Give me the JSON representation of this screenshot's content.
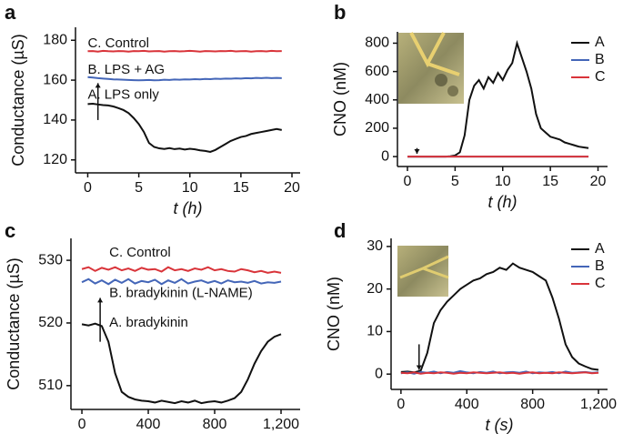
{
  "chart_data": [
    {
      "type": "line",
      "panel_label": "a",
      "x_label": "t (h)",
      "y_label": "Conductance (µS)",
      "xlim": [
        -1.2,
        20.8
      ],
      "ylim": [
        113.5,
        186.5
      ],
      "xticks": [
        0,
        5,
        10,
        15,
        20
      ],
      "yticks": [
        120,
        140,
        160,
        180
      ],
      "x": [
        0,
        0.5,
        1,
        1.5,
        2,
        2.5,
        3,
        3.5,
        4,
        4.5,
        5,
        5.5,
        6,
        6.5,
        7,
        7.5,
        8,
        8.5,
        9,
        9.5,
        10,
        10.5,
        11,
        11.5,
        12,
        12.5,
        13,
        13.5,
        14,
        14.5,
        15,
        15.5,
        16,
        16.5,
        17,
        17.5,
        18,
        18.5,
        19
      ],
      "series": [
        {
          "name": "C. Control",
          "color": "#d9343a",
          "values": [
            174.5,
            174.6,
            174.3,
            174.7,
            174.5,
            174.4,
            174.6,
            174.5,
            174.3,
            174.6,
            174.5,
            174.7,
            174.4,
            174.5,
            174.6,
            174.3,
            174.5,
            174.6,
            174.4,
            174.5,
            174.7,
            174.5,
            174.3,
            174.6,
            174.5,
            174.4,
            174.6,
            174.5,
            174.7,
            174.4,
            174.5,
            174.6,
            174.3,
            174.5,
            174.6,
            174.4,
            174.7,
            174.5,
            174.6
          ]
        },
        {
          "name": "B. LPS + AG",
          "color": "#4466b8",
          "values": [
            161.5,
            161.3,
            161,
            160.8,
            160.6,
            160.4,
            160.3,
            160.2,
            160.1,
            160,
            159.9,
            160,
            160.1,
            159.9,
            160,
            160.2,
            160.1,
            160.3,
            160.2,
            160.4,
            160.3,
            160.5,
            160.4,
            160.6,
            160.5,
            160.7,
            160.6,
            160.8,
            160.7,
            160.9,
            160.8,
            161,
            160.9,
            161.1,
            161,
            161.2,
            161,
            161.1,
            161
          ]
        },
        {
          "name": "A. LPS only",
          "color": "#111111",
          "values": [
            148,
            148.2,
            147.8,
            147.5,
            147.3,
            146.8,
            146,
            145,
            143.5,
            141,
            138,
            134,
            128.5,
            126.5,
            125.8,
            125.5,
            125.9,
            125.4,
            125.7,
            125.2,
            125.6,
            125.3,
            124.8,
            124.5,
            124,
            125,
            126.5,
            128,
            129.5,
            130.5,
            131.5,
            132,
            133,
            133.5,
            134,
            134.5,
            135,
            135.5,
            135
          ]
        }
      ],
      "annotations": [
        {
          "text": "C. Control",
          "color": "#d9343a"
        },
        {
          "text": "B. LPS + AG",
          "color": "#4466b8"
        },
        {
          "text": "A. LPS only",
          "color": "#111111"
        }
      ]
    },
    {
      "type": "line",
      "panel_label": "b",
      "x_label": "t (h)",
      "y_label": "CNO (nM)",
      "xlim": [
        -1.05,
        21
      ],
      "ylim": [
        -70,
        880
      ],
      "xticks": [
        0,
        5,
        10,
        15,
        20
      ],
      "yticks": [
        0,
        200,
        400,
        600,
        800
      ],
      "legend": "upper right",
      "x": [
        0,
        0.5,
        1,
        1.5,
        2,
        2.5,
        3,
        3.5,
        4,
        4.5,
        5,
        5.5,
        6,
        6.5,
        7,
        7.5,
        8,
        8.5,
        9,
        9.5,
        10,
        10.5,
        11,
        11.5,
        12,
        12.5,
        13,
        13.5,
        14,
        14.5,
        15,
        15.5,
        16,
        16.5,
        17,
        17.5,
        18,
        18.5,
        19
      ],
      "series": [
        {
          "name": "A",
          "color": "#111111",
          "values": [
            0,
            0,
            0,
            0,
            0,
            0,
            0,
            0,
            0,
            2,
            8,
            30,
            150,
            400,
            500,
            540,
            480,
            560,
            520,
            590,
            540,
            610,
            660,
            800,
            700,
            600,
            480,
            300,
            200,
            170,
            140,
            130,
            120,
            100,
            90,
            80,
            70,
            65,
            60
          ]
        },
        {
          "name": "B",
          "color": "#4466b8",
          "values": [
            0,
            0,
            0,
            0,
            0,
            0,
            0,
            0,
            0,
            0,
            0,
            0,
            0,
            0,
            0,
            0,
            0,
            0,
            0,
            0,
            0,
            0,
            0,
            0,
            0,
            0,
            0,
            0,
            0,
            0,
            0,
            0,
            0,
            0,
            0,
            0,
            0,
            0,
            0
          ]
        },
        {
          "name": "C",
          "color": "#d9343a",
          "values": [
            0,
            0,
            0,
            0,
            0,
            0,
            0,
            0,
            0,
            0,
            0,
            0,
            0,
            0,
            0,
            0,
            0,
            0,
            0,
            0,
            0,
            0,
            0,
            0,
            0,
            0,
            0,
            0,
            0,
            0,
            0,
            0,
            0,
            0,
            0,
            0,
            0,
            0,
            0
          ]
        }
      ]
    },
    {
      "type": "line",
      "panel_label": "c",
      "x_label": "t (s)",
      "y_label": "Conductance (µS)",
      "xlim": [
        -66,
        1315
      ],
      "ylim": [
        506.2,
        533.5
      ],
      "xticks": [
        0,
        400,
        800,
        {
          "value": 1200,
          "label": "1,200"
        }
      ],
      "yticks": [
        510,
        520,
        530
      ],
      "x": [
        0,
        40,
        80,
        120,
        160,
        200,
        240,
        280,
        320,
        360,
        400,
        440,
        480,
        520,
        560,
        600,
        640,
        680,
        720,
        760,
        800,
        840,
        880,
        920,
        960,
        1000,
        1040,
        1080,
        1120,
        1160,
        1200
      ],
      "series": [
        {
          "name": "C. Control",
          "color": "#d9343a",
          "values": [
            528.6,
            528.9,
            528.3,
            528.8,
            528.5,
            528.9,
            528.4,
            528.7,
            528.3,
            528.8,
            528.5,
            528.6,
            528.2,
            528.9,
            528.4,
            528.6,
            528.3,
            528.7,
            528.5,
            528.9,
            528.4,
            528.6,
            528.3,
            528.2,
            528.6,
            528.4,
            528.1,
            528.3,
            528,
            528.2,
            528
          ]
        },
        {
          "name": "B. bradykinin (L-NAME)",
          "color": "#4466b8",
          "values": [
            526.5,
            527,
            526.3,
            526.8,
            526.2,
            526.9,
            526.4,
            527,
            526.3,
            526.7,
            526.5,
            526.9,
            526.2,
            526.8,
            526.4,
            527,
            526.3,
            526.6,
            526.8,
            526.4,
            526.7,
            526.3,
            526.8,
            526.5,
            526.6,
            526.4,
            526.7,
            526.3,
            526.5,
            526.4,
            526.6
          ]
        },
        {
          "name": "A. bradykinin",
          "color": "#111111",
          "values": [
            519.8,
            519.6,
            519.9,
            519.5,
            517,
            512,
            509,
            508.2,
            507.8,
            507.6,
            507.5,
            507.3,
            507.6,
            507.4,
            507.2,
            507.5,
            507.3,
            507.6,
            507.2,
            507.4,
            507.5,
            507.3,
            507.6,
            508,
            509,
            511,
            513.5,
            515.5,
            517,
            517.8,
            518.2
          ]
        }
      ],
      "annotations": [
        {
          "text": "C. Control",
          "color": "#d9343a"
        },
        {
          "text": "B. bradykinin (L-NAME)",
          "color": "#4466b8"
        },
        {
          "text": "A. bradykinin",
          "color": "#111111"
        }
      ]
    },
    {
      "type": "line",
      "panel_label": "d",
      "x_label": "t (s)",
      "y_label": "CNO (nM)",
      "xlim": [
        -60,
        1255
      ],
      "ylim": [
        -3.6,
        31.9
      ],
      "xticks": [
        0,
        400,
        800,
        {
          "value": 1200,
          "label": "1,200"
        }
      ],
      "yticks": [
        0,
        10,
        20,
        30
      ],
      "legend": "upper right",
      "x": [
        0,
        40,
        80,
        120,
        160,
        200,
        240,
        280,
        320,
        360,
        400,
        440,
        480,
        520,
        560,
        600,
        640,
        680,
        720,
        760,
        800,
        840,
        880,
        920,
        960,
        1000,
        1040,
        1080,
        1120,
        1160,
        1200
      ],
      "series": [
        {
          "name": "A",
          "color": "#111111",
          "values": [
            0.5,
            0.6,
            0.4,
            0.8,
            5,
            12,
            15,
            17,
            18.5,
            20,
            21,
            22,
            22.5,
            23.5,
            24,
            25,
            24.5,
            26,
            25,
            24.5,
            24,
            23,
            22,
            18,
            13,
            7,
            4,
            2.5,
            1.8,
            1.2,
            1
          ]
        },
        {
          "name": "B",
          "color": "#4466b8",
          "values": [
            0.2,
            0.4,
            0.1,
            0.5,
            0.3,
            0.6,
            0.2,
            0.5,
            0.3,
            0.7,
            0.4,
            0.2,
            0.5,
            0.3,
            0.6,
            0.2,
            0.4,
            0.5,
            0.3,
            0.6,
            0.2,
            0.4,
            0.3,
            0.5,
            0.2,
            0.6,
            0.3,
            0.4,
            0.5,
            0.3,
            0.4
          ]
        },
        {
          "name": "C",
          "color": "#d9343a",
          "values": [
            0.3,
            0.2,
            0.4,
            0.1,
            0.3,
            0.2,
            0.4,
            0.3,
            0.1,
            0.3,
            0.2,
            0.4,
            0.3,
            0.2,
            0.3,
            0.4,
            0.2,
            0.3,
            0.1,
            0.3,
            0.4,
            0.2,
            0.3,
            0.2,
            0.4,
            0.3,
            0.2,
            0.3,
            0.4,
            0.2,
            0.3
          ]
        }
      ]
    }
  ]
}
